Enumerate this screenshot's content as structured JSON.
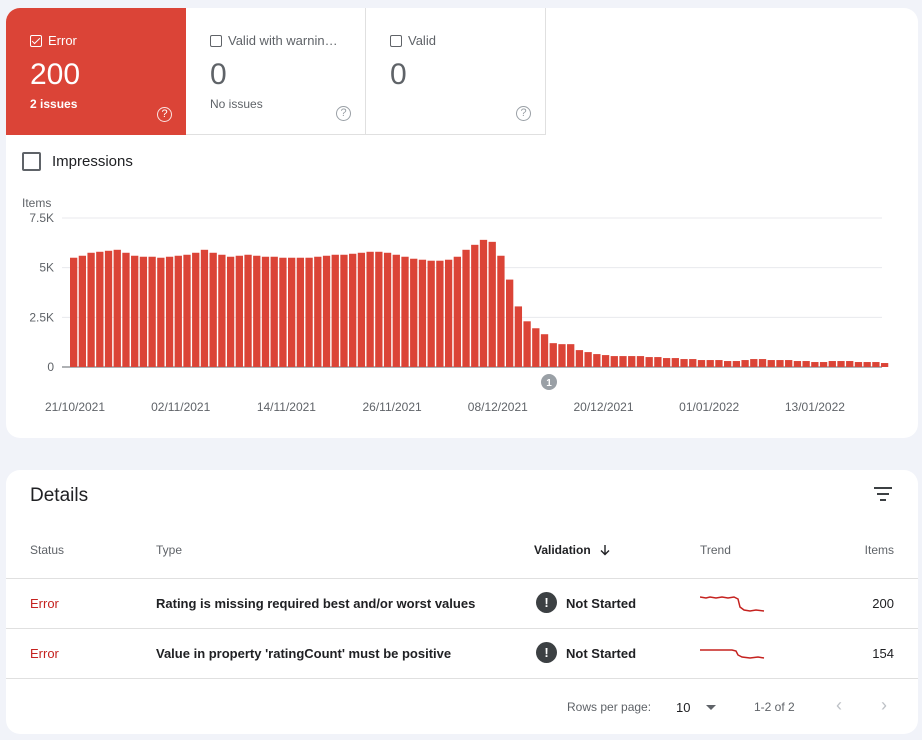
{
  "tiles": {
    "error": {
      "label": "Error",
      "count": "200",
      "sub": "2 issues",
      "help": "?"
    },
    "warning": {
      "label": "Valid with warnin…",
      "count": "0",
      "sub": "No issues",
      "help": "?"
    },
    "valid": {
      "label": "Valid",
      "count": "0",
      "sub": "",
      "help": "?"
    }
  },
  "impressions_label": "Impressions",
  "chart_data": {
    "type": "bar",
    "ylabel": "Items",
    "yticks": [
      "0",
      "2.5K",
      "5K",
      "7.5K"
    ],
    "ylim": [
      0,
      7500
    ],
    "x_tick_labels": [
      "21/10/2021",
      "02/11/2021",
      "14/11/2021",
      "26/11/2021",
      "08/12/2021",
      "20/12/2021",
      "01/01/2022",
      "13/01/2022"
    ],
    "annotation": "1",
    "color": "#db4437",
    "series": [
      {
        "values": [
          5500,
          5600,
          5750,
          5800,
          5850,
          5900,
          5750,
          5600,
          5550,
          5550,
          5500,
          5550,
          5600,
          5650,
          5750,
          5900,
          5750,
          5650,
          5550,
          5600,
          5650,
          5600,
          5550,
          5550,
          5500,
          5500,
          5500,
          5500,
          5550,
          5600,
          5650,
          5650,
          5700,
          5750,
          5800,
          5800,
          5750,
          5650,
          5550,
          5450,
          5400,
          5350,
          5350,
          5400,
          5550,
          5900,
          6150,
          6400,
          6300,
          5600,
          4400,
          3050,
          2300,
          1950,
          1650,
          1200,
          1150,
          1150,
          850,
          750,
          650,
          600,
          550,
          550,
          550,
          550,
          500,
          500,
          450,
          450,
          400,
          400,
          350,
          350,
          350,
          300,
          300,
          350,
          400,
          400,
          350,
          350,
          350,
          300,
          300,
          250,
          250,
          300,
          300,
          300,
          250,
          250,
          250,
          200
        ]
      }
    ]
  },
  "details": {
    "title": "Details",
    "headers": {
      "status": "Status",
      "type": "Type",
      "validation": "Validation",
      "trend": "Trend",
      "items": "Items"
    },
    "rows": [
      {
        "status": "Error",
        "type": "Rating is missing required best and/or worst values",
        "validation_icon": "!",
        "validation": "Not Started",
        "items": "200"
      },
      {
        "status": "Error",
        "type": "Value in property 'ratingCount' must be positive",
        "validation_icon": "!",
        "validation": "Not Started",
        "items": "154"
      }
    ],
    "footer": {
      "rows_per_page_label": "Rows per page:",
      "rows_per_page": "10",
      "range": "1-2 of 2"
    }
  },
  "colors": {
    "error": "#db4437",
    "status_text": "#c5221f"
  }
}
